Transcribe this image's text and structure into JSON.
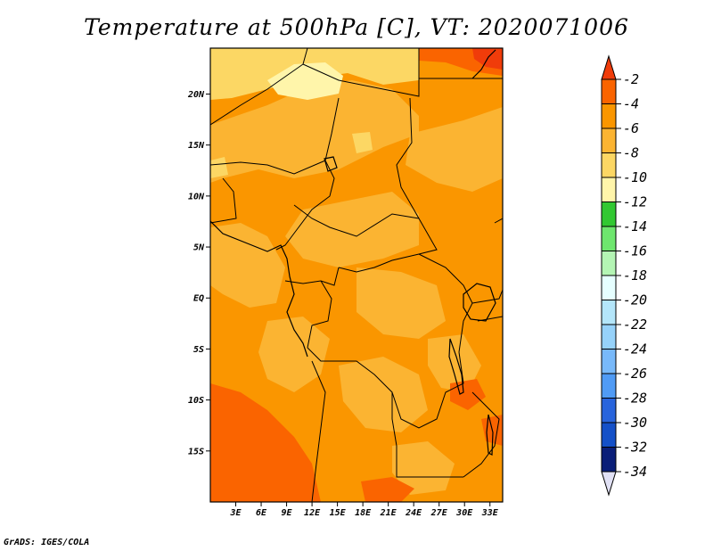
{
  "title": "Temperature at 500hPa [C], VT: 2020071006",
  "credit": "GrADS: IGES/COLA",
  "map": {
    "lon_range": [
      0,
      34.5
    ],
    "lat_range": [
      -20,
      24.5
    ],
    "lat_ticks": [
      {
        "value": 20,
        "label": "20N"
      },
      {
        "value": 15,
        "label": "15N"
      },
      {
        "value": 10,
        "label": "10N"
      },
      {
        "value": 5,
        "label": "5N"
      },
      {
        "value": 0,
        "label": "EQ"
      },
      {
        "value": -5,
        "label": "5S"
      },
      {
        "value": -10,
        "label": "10S"
      },
      {
        "value": -15,
        "label": "15S"
      }
    ],
    "lon_ticks": [
      {
        "value": 3,
        "label": "3E"
      },
      {
        "value": 6,
        "label": "6E"
      },
      {
        "value": 9,
        "label": "9E"
      },
      {
        "value": 12,
        "label": "12E"
      },
      {
        "value": 15,
        "label": "15E"
      },
      {
        "value": 18,
        "label": "18E"
      },
      {
        "value": 21,
        "label": "21E"
      },
      {
        "value": 24,
        "label": "24E"
      },
      {
        "value": 27,
        "label": "27E"
      },
      {
        "value": 30,
        "label": "30E"
      },
      {
        "value": 33,
        "label": "33E"
      }
    ]
  },
  "colorbar": {
    "labels": [
      "-2",
      "-4",
      "-6",
      "-8",
      "-10",
      "-12",
      "-14",
      "-16",
      "-18",
      "-20",
      "-22",
      "-24",
      "-26",
      "-28",
      "-30",
      "-32",
      "-34"
    ],
    "colors": [
      "#f03c0a",
      "#fa6400",
      "#fa9600",
      "#fbb432",
      "#fcd764",
      "#fff5aa",
      "#32c832",
      "#6ee66e",
      "#b4f5b4",
      "#e6ffff",
      "#b4e6fa",
      "#96d2fa",
      "#78b9fa",
      "#509bf5",
      "#2864dc",
      "#1450c8",
      "#0a1e78",
      "#e1e1f5"
    ]
  }
}
